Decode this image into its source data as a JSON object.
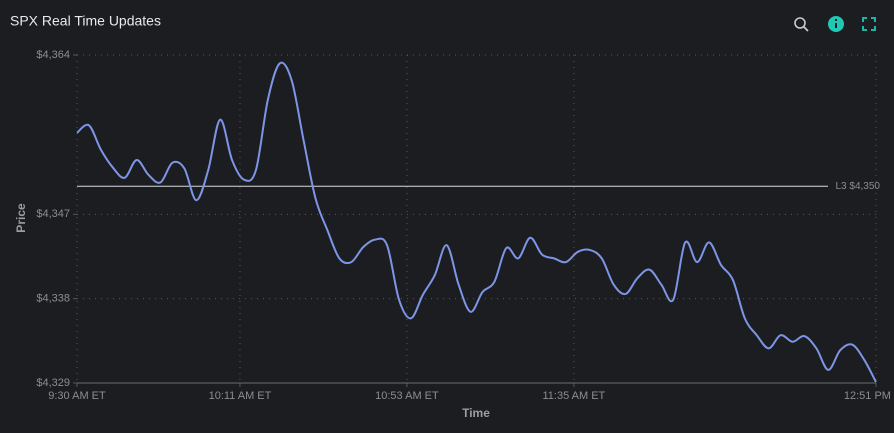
{
  "chart_data": {
    "type": "line",
    "title": "SPX Real Time Updates",
    "x_label": "Time",
    "y_label": "Price",
    "x": [
      "09:30",
      "09:33",
      "09:36",
      "09:39",
      "09:42",
      "09:45",
      "09:48",
      "09:51",
      "09:54",
      "09:57",
      "10:00",
      "10:03",
      "10:06",
      "10:09",
      "10:12",
      "10:15",
      "10:18",
      "10:21",
      "10:24",
      "10:27",
      "10:30",
      "10:33",
      "10:36",
      "10:39",
      "10:42",
      "10:45",
      "10:48",
      "10:51",
      "10:54",
      "10:57",
      "11:00",
      "11:03",
      "11:06",
      "11:09",
      "11:12",
      "11:15",
      "11:18",
      "11:21",
      "11:24",
      "11:27",
      "11:30",
      "11:33",
      "11:36",
      "11:39",
      "11:42",
      "11:45",
      "11:48",
      "11:51",
      "11:54",
      "11:57",
      "12:00",
      "12:03",
      "12:06",
      "12:09",
      "12:12",
      "12:15",
      "12:18",
      "12:21",
      "12:24",
      "12:27",
      "12:30",
      "12:33",
      "12:36",
      "12:39",
      "12:42",
      "12:45",
      "12:48",
      "12:51"
    ],
    "series": [
      {
        "name": "SPX",
        "color": "#7d95e6",
        "values": [
          4355.7,
          4356.5,
          4353.9,
          4352.0,
          4350.9,
          4352.8,
          4351.2,
          4350.4,
          4352.5,
          4351.9,
          4348.5,
          4351.7,
          4357.1,
          4352.8,
          4350.7,
          4351.7,
          4359.2,
          4363.1,
          4361.3,
          4354.9,
          4348.7,
          4345.3,
          4342.3,
          4341.9,
          4343.5,
          4344.3,
          4343.7,
          4337.9,
          4335.9,
          4338.4,
          4340.5,
          4343.7,
          4339.5,
          4336.6,
          4338.7,
          4339.8,
          4343.4,
          4342.3,
          4344.5,
          4342.7,
          4342.3,
          4341.9,
          4343.0,
          4343.2,
          4342.3,
          4339.5,
          4338.5,
          4340.2,
          4341.1,
          4339.5,
          4337.9,
          4344.0,
          4341.9,
          4344.0,
          4341.6,
          4340.0,
          4335.9,
          4334.1,
          4332.7,
          4334.1,
          4333.4,
          4334.0,
          4332.7,
          4330.4,
          4332.5,
          4333.1,
          4331.5,
          4329.1
        ]
      }
    ],
    "xlim": [
      "09:30",
      "12:51"
    ],
    "xticks": [
      {
        "value": "09:30",
        "label": "9:30 AM ET"
      },
      {
        "value": "10:11",
        "label": "10:11 AM ET"
      },
      {
        "value": "10:53",
        "label": "10:53 AM ET"
      },
      {
        "value": "11:35",
        "label": "11:35 AM ET"
      },
      {
        "value": "12:51",
        "label": "12:51 PM ET"
      }
    ],
    "ylim": [
      4329,
      4364
    ],
    "yticks": [
      {
        "value": 4329,
        "label": "$4,329"
      },
      {
        "value": 4338,
        "label": "$4,338"
      },
      {
        "value": 4347,
        "label": "$4,347"
      },
      {
        "value": 4364,
        "label": "$4,364"
      }
    ],
    "reference_line": {
      "value": 4350,
      "label": "L3 $4,350"
    },
    "grid": true
  }
}
